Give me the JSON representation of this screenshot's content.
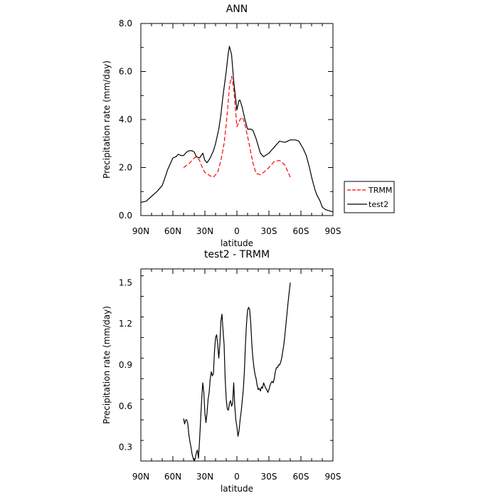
{
  "chart_data": [
    {
      "type": "line",
      "title": "ANN",
      "xlabel": "latitude",
      "ylabel": "Precipitation rate (mm/day)",
      "x_ticks": [
        -90,
        -60,
        -30,
        0,
        30,
        60,
        90
      ],
      "x_tick_labels": [
        "90N",
        "60N",
        "30N",
        "0",
        "30S",
        "60S",
        "90S"
      ],
      "xlim": [
        -90,
        90
      ],
      "ylim": [
        0,
        8
      ],
      "y_ticks": [
        0,
        2,
        4,
        6,
        8
      ],
      "y_tick_labels": [
        "0.0",
        "2.0",
        "4.0",
        "6.0",
        "8.0"
      ],
      "legend_position": "right, outside",
      "series": [
        {
          "name": "TRMM",
          "color": "#ff0000",
          "style": "dashed",
          "x": [
            -50,
            -45,
            -40,
            -38,
            -35,
            -32,
            -30,
            -25,
            -22,
            -18,
            -15,
            -12,
            -10,
            -8,
            -7,
            -5,
            -3,
            0,
            3,
            5,
            7,
            10,
            15,
            18,
            22,
            25,
            30,
            35,
            40,
            45,
            50
          ],
          "y": [
            2.0,
            2.15,
            2.4,
            2.45,
            2.3,
            1.95,
            1.8,
            1.65,
            1.6,
            1.8,
            2.3,
            3.0,
            3.8,
            4.8,
            5.4,
            5.8,
            5.3,
            3.7,
            4.0,
            4.1,
            3.9,
            3.3,
            2.2,
            1.75,
            1.7,
            1.8,
            2.0,
            2.25,
            2.3,
            2.1,
            1.6
          ]
        },
        {
          "name": "test2",
          "color": "#000000",
          "style": "solid",
          "x": [
            -90,
            -85,
            -80,
            -75,
            -70,
            -68,
            -65,
            -62,
            -60,
            -57,
            -55,
            -52,
            -50,
            -47,
            -45,
            -42,
            -40,
            -38,
            -35,
            -32,
            -30,
            -28,
            -25,
            -22,
            -20,
            -17,
            -15,
            -13,
            -10,
            -8,
            -7,
            -5,
            -3,
            0,
            2,
            3,
            5,
            7,
            10,
            13,
            15,
            18,
            22,
            25,
            30,
            35,
            40,
            45,
            50,
            55,
            58,
            62,
            65,
            68,
            70,
            73,
            75,
            78,
            80,
            83,
            85,
            88,
            90
          ],
          "y": [
            0.55,
            0.6,
            0.8,
            1.0,
            1.25,
            1.5,
            1.9,
            2.2,
            2.4,
            2.45,
            2.55,
            2.5,
            2.5,
            2.65,
            2.7,
            2.7,
            2.65,
            2.45,
            2.4,
            2.6,
            2.3,
            2.2,
            2.4,
            2.7,
            3.0,
            3.6,
            4.2,
            5.0,
            6.0,
            6.8,
            7.05,
            6.7,
            5.6,
            4.4,
            4.8,
            4.8,
            4.5,
            4.1,
            3.6,
            3.6,
            3.55,
            3.2,
            2.6,
            2.45,
            2.6,
            2.85,
            3.1,
            3.05,
            3.15,
            3.15,
            3.1,
            2.8,
            2.5,
            2.0,
            1.6,
            1.1,
            0.85,
            0.6,
            0.35,
            0.25,
            0.22,
            0.18,
            0.15
          ]
        }
      ]
    },
    {
      "type": "line",
      "title": "test2 - TRMM",
      "xlabel": "latitude",
      "ylabel": "Precipitation rate (mm/day)",
      "x_ticks": [
        -90,
        -60,
        -30,
        0,
        30,
        60,
        90
      ],
      "x_tick_labels": [
        "90N",
        "60N",
        "30N",
        "0",
        "30S",
        "60S",
        "90S"
      ],
      "xlim": [
        -90,
        90
      ],
      "ylim": [
        0.2,
        1.6
      ],
      "y_ticks": [
        0.3,
        0.6,
        0.9,
        1.2,
        1.5
      ],
      "y_tick_labels": [
        "0.3",
        "0.6",
        "0.9",
        "1.2",
        "1.5"
      ],
      "series": [
        {
          "color": "#000000",
          "style": "solid",
          "x": [
            -50,
            -49,
            -48,
            -47,
            -46,
            -45,
            -44,
            -43,
            -42,
            -41,
            -40,
            -39,
            -38,
            -37,
            -36,
            -35,
            -34,
            -33,
            -32,
            -31,
            -30,
            -29,
            -28,
            -27,
            -26,
            -25,
            -24,
            -23,
            -22,
            -21,
            -20,
            -19,
            -18,
            -17,
            -16,
            -15,
            -14,
            -13,
            -12,
            -11,
            -10,
            -9,
            -8,
            -7,
            -6,
            -5,
            -4,
            -3,
            -2,
            -1,
            0,
            1,
            2,
            3,
            4,
            5,
            6,
            7,
            8,
            9,
            10,
            11,
            12,
            13,
            14,
            15,
            16,
            17,
            18,
            19,
            20,
            21,
            22,
            23,
            24,
            25,
            26,
            27,
            28,
            29,
            30,
            31,
            32,
            33,
            34,
            35,
            36,
            37,
            38,
            39,
            40,
            41,
            42,
            43,
            44,
            45,
            46,
            47,
            48,
            49,
            50
          ],
          "y": [
            0.51,
            0.47,
            0.5,
            0.5,
            0.47,
            0.39,
            0.34,
            0.3,
            0.25,
            0.22,
            0.2,
            0.22,
            0.26,
            0.28,
            0.22,
            0.35,
            0.5,
            0.65,
            0.77,
            0.7,
            0.55,
            0.48,
            0.55,
            0.65,
            0.7,
            0.8,
            0.85,
            0.82,
            0.84,
            1.0,
            1.1,
            1.12,
            1.05,
            0.95,
            1.05,
            1.22,
            1.27,
            1.15,
            1.05,
            0.8,
            0.65,
            0.58,
            0.57,
            0.62,
            0.64,
            0.6,
            0.62,
            0.77,
            0.6,
            0.5,
            0.45,
            0.38,
            0.42,
            0.5,
            0.56,
            0.64,
            0.72,
            0.85,
            1.05,
            1.2,
            1.3,
            1.32,
            1.3,
            1.2,
            1.05,
            0.95,
            0.88,
            0.83,
            0.8,
            0.75,
            0.72,
            0.73,
            0.71,
            0.74,
            0.73,
            0.77,
            0.75,
            0.73,
            0.72,
            0.7,
            0.72,
            0.75,
            0.77,
            0.78,
            0.77,
            0.8,
            0.85,
            0.88,
            0.88,
            0.9,
            0.9,
            0.92,
            0.95,
            1.0,
            1.05,
            1.12,
            1.2,
            1.28,
            1.36,
            1.43,
            1.5
          ]
        }
      ]
    }
  ]
}
